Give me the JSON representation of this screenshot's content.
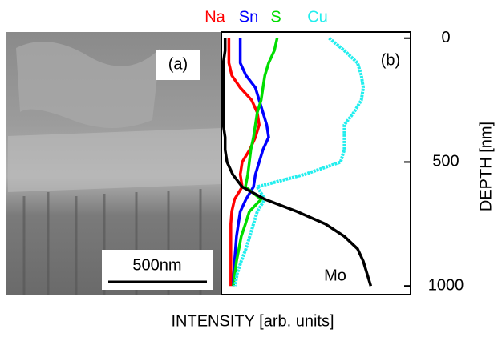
{
  "image": {
    "panel_label": "(a)",
    "scale_bar_label": "500nm"
  },
  "chart_data": {
    "type": "line",
    "orientation": "horizontal",
    "panel_label": "(b)",
    "x_label": "DEPTH [nm]",
    "y_label": "INTENSITY [arb. units]",
    "x": [
      0,
      50,
      100,
      150,
      200,
      250,
      300,
      350,
      400,
      450,
      500,
      550,
      600,
      650,
      700,
      750,
      800,
      850,
      900,
      950,
      1000
    ],
    "xlim": [
      -25,
      1035
    ],
    "xticks": [
      0,
      500,
      1000
    ],
    "ylim": [
      0,
      100
    ],
    "series": [
      {
        "name": "Na",
        "color": "#ff0000",
        "values": [
          4,
          4,
          4,
          5.5,
          10,
          16,
          19,
          20,
          18,
          15,
          11,
          10,
          11,
          7,
          5.5,
          5,
          5,
          5,
          5,
          5,
          5
        ]
      },
      {
        "name": "Sn",
        "color": "#0000ff",
        "values": [
          10,
          10,
          10,
          13,
          18,
          20,
          22,
          24,
          25,
          22,
          20,
          18,
          17,
          13,
          10,
          9,
          8,
          7.5,
          7,
          6.5,
          6.3
        ]
      },
      {
        "name": "S",
        "color": "#00dd00",
        "values": [
          29.5,
          28,
          25,
          23,
          22,
          21,
          19,
          18,
          17,
          15.6,
          14.8,
          14,
          12.7,
          21,
          14.8,
          12.7,
          10.5,
          9.3,
          8,
          7.2,
          6.3
        ]
      },
      {
        "name": "Cu",
        "color": "#22eeee",
        "values": [
          57,
          65,
          72,
          74,
          75,
          74,
          70,
          65,
          65,
          65,
          63,
          44,
          19,
          23,
          19,
          17,
          15,
          13,
          10.5,
          8.4,
          7.2
        ]
      },
      {
        "name": "Mo",
        "color": "#000000",
        "values": [
          2,
          2,
          1,
          1,
          1,
          1,
          1,
          1,
          2,
          2,
          3,
          6,
          11,
          23,
          40,
          55,
          65,
          72,
          75,
          77,
          79
        ]
      }
    ]
  }
}
